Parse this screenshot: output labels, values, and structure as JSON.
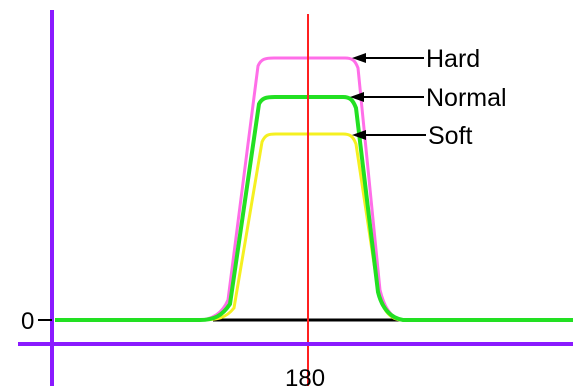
{
  "diagram": {
    "zero_label": "0",
    "center_label": "180",
    "curves": [
      {
        "name": "Hard",
        "color": "#ff6ee8"
      },
      {
        "name": "Normal",
        "color": "#22e022"
      },
      {
        "name": "Soft",
        "color": "#f5f020"
      }
    ],
    "axis_color": "#8a1aff",
    "center_line_color": "#ff2020",
    "baseline_color": "#000000",
    "pointer_color": "#000000"
  }
}
